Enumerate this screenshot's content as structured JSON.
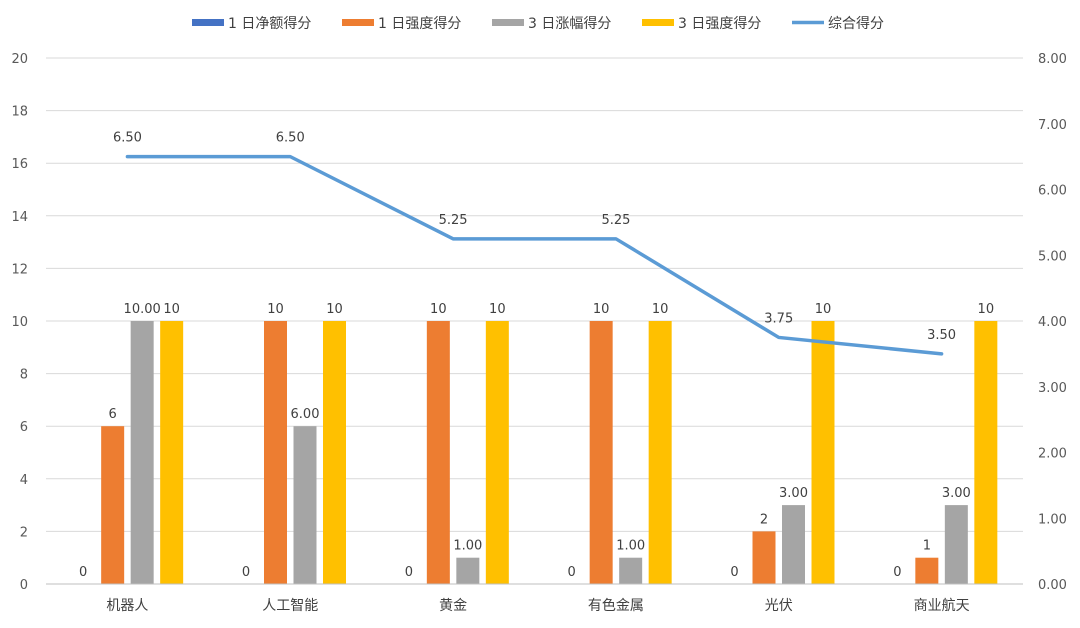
{
  "chart_data": {
    "type": "bar",
    "categories": [
      "机器人",
      "人工智能",
      "黄金",
      "有色金属",
      "光伏",
      "商业航天"
    ],
    "series": [
      {
        "name": "1 日净额得分",
        "type": "bar",
        "axis": "left",
        "color": "#4472C4",
        "values": [
          0,
          0,
          0,
          0,
          0,
          0
        ],
        "labels": [
          "0",
          "0",
          "0",
          "0",
          "0",
          "0"
        ]
      },
      {
        "name": "1 日强度得分",
        "type": "bar",
        "axis": "left",
        "color": "#ED7D31",
        "values": [
          6,
          10,
          10,
          10,
          2,
          1
        ],
        "labels": [
          "6",
          "10",
          "10",
          "10",
          "2",
          "1"
        ]
      },
      {
        "name": "3 日涨幅得分",
        "type": "bar",
        "axis": "left",
        "color": "#A5A5A5",
        "values": [
          10,
          6,
          1,
          1,
          3,
          3
        ],
        "labels": [
          "10.00",
          "6.00",
          "1.00",
          "1.00",
          "3.00",
          "3.00"
        ]
      },
      {
        "name": "3 日强度得分",
        "type": "bar",
        "axis": "left",
        "color": "#FFC000",
        "values": [
          10,
          10,
          10,
          10,
          10,
          10
        ],
        "labels": [
          "10",
          "10",
          "10",
          "10",
          "10",
          "10"
        ]
      },
      {
        "name": "综合得分",
        "type": "line",
        "axis": "right",
        "color": "#5B9BD5",
        "values": [
          6.5,
          6.5,
          5.25,
          5.25,
          3.75,
          3.5
        ],
        "labels": [
          "6.50",
          "6.50",
          "5.25",
          "5.25",
          "3.75",
          "3.50"
        ]
      }
    ],
    "ylim": [
      0,
      20
    ],
    "yticks": [
      "0",
      "2",
      "4",
      "6",
      "8",
      "10",
      "12",
      "14",
      "16",
      "18",
      "20"
    ],
    "y2lim": [
      0,
      8
    ],
    "y2ticks": [
      "0.00",
      "1.00",
      "2.00",
      "3.00",
      "4.00",
      "5.00",
      "6.00",
      "7.00",
      "8.00"
    ],
    "grid": true,
    "legend_position": "top"
  }
}
